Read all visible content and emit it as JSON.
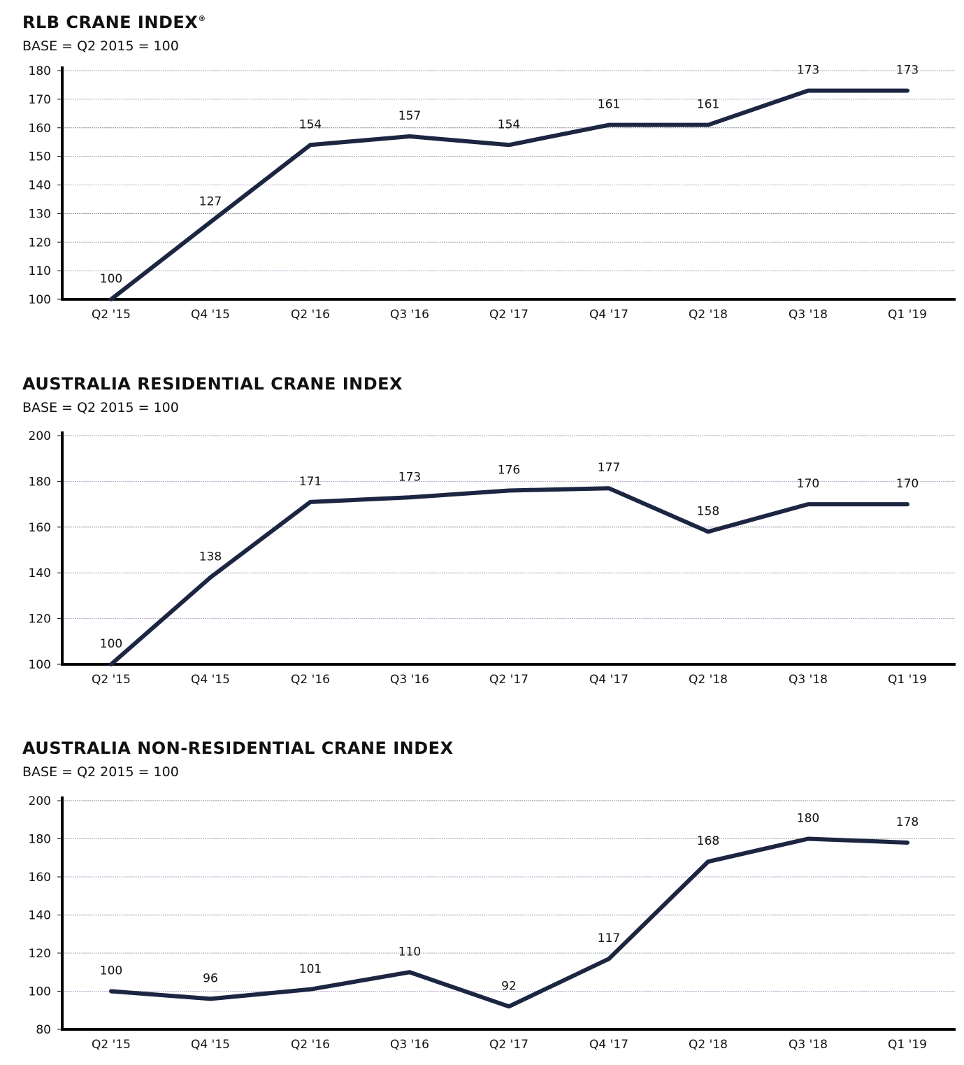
{
  "chart_data": [
    {
      "type": "line",
      "title": "RLB CRANE INDEX",
      "title_mark": "®",
      "subtitle": "BASE = Q2 2015 = 100",
      "categories": [
        "Q2 '15",
        "Q4 '15",
        "Q2 '16",
        "Q3 '16",
        "Q2 '17",
        "Q4 '17",
        "Q2 '18",
        "Q3 '18",
        "Q1 '19"
      ],
      "values": [
        100,
        127,
        154,
        157,
        154,
        161,
        161,
        173,
        173
      ],
      "ylim": [
        100,
        180
      ],
      "yticks": [
        100,
        110,
        120,
        130,
        140,
        150,
        160,
        170,
        180
      ],
      "grid": true,
      "line_color": "#1c2541"
    },
    {
      "type": "line",
      "title": "AUSTRALIA RESIDENTIAL CRANE INDEX",
      "subtitle": "BASE = Q2 2015 = 100",
      "categories": [
        "Q2 '15",
        "Q4 '15",
        "Q2 '16",
        "Q3 '16",
        "Q2 '17",
        "Q4 '17",
        "Q2 '18",
        "Q3 '18",
        "Q1 '19"
      ],
      "values": [
        100,
        138,
        171,
        173,
        176,
        177,
        158,
        170,
        170
      ],
      "ylim": [
        100,
        200
      ],
      "yticks": [
        100,
        120,
        140,
        160,
        180,
        200
      ],
      "grid": true,
      "line_color": "#1c2541"
    },
    {
      "type": "line",
      "title": "AUSTRALIA NON-RESIDENTIAL CRANE INDEX",
      "subtitle": "BASE = Q2 2015 = 100",
      "categories": [
        "Q2 '15",
        "Q4 '15",
        "Q2 '16",
        "Q3 '16",
        "Q2 '17",
        "Q4 '17",
        "Q2 '18",
        "Q3 '18",
        "Q1 '19"
      ],
      "values": [
        100,
        96,
        101,
        110,
        92,
        117,
        168,
        180,
        178
      ],
      "ylim": [
        80,
        200
      ],
      "yticks": [
        80,
        100,
        120,
        140,
        160,
        180,
        200
      ],
      "grid": true,
      "line_color": "#1c2541"
    }
  ]
}
